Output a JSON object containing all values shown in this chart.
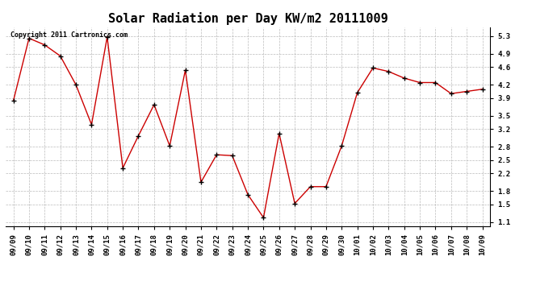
{
  "title": "Solar Radiation per Day KW/m2 20111009",
  "copyright_text": "Copyright 2011 Cartronics.com",
  "x_labels": [
    "09/09",
    "09/10",
    "09/11",
    "09/12",
    "09/13",
    "09/14",
    "09/15",
    "09/16",
    "09/17",
    "09/18",
    "09/19",
    "09/20",
    "09/21",
    "09/22",
    "09/23",
    "09/24",
    "09/25",
    "09/26",
    "09/27",
    "09/28",
    "09/29",
    "09/30",
    "10/01",
    "10/02",
    "10/03",
    "10/04",
    "10/05",
    "10/06",
    "10/07",
    "10/08",
    "10/09"
  ],
  "y_values": [
    3.84,
    5.25,
    5.1,
    4.85,
    4.2,
    3.3,
    5.28,
    2.32,
    3.05,
    3.75,
    2.82,
    4.53,
    2.0,
    2.62,
    2.6,
    1.72,
    1.2,
    3.1,
    1.52,
    1.9,
    1.9,
    2.82,
    4.02,
    4.58,
    4.5,
    4.35,
    4.25,
    4.25,
    4.0,
    4.05,
    4.1
  ],
  "line_color": "#cc0000",
  "marker_color": "#000000",
  "background_color": "#ffffff",
  "grid_color": "#aaaaaa",
  "ylim": [
    1.0,
    5.5
  ],
  "yticks": [
    1.1,
    1.5,
    1.8,
    2.2,
    2.5,
    2.8,
    3.2,
    3.5,
    3.9,
    4.2,
    4.6,
    4.9,
    5.3
  ],
  "title_fontsize": 11,
  "tick_fontsize": 6.5,
  "copyright_fontsize": 6
}
